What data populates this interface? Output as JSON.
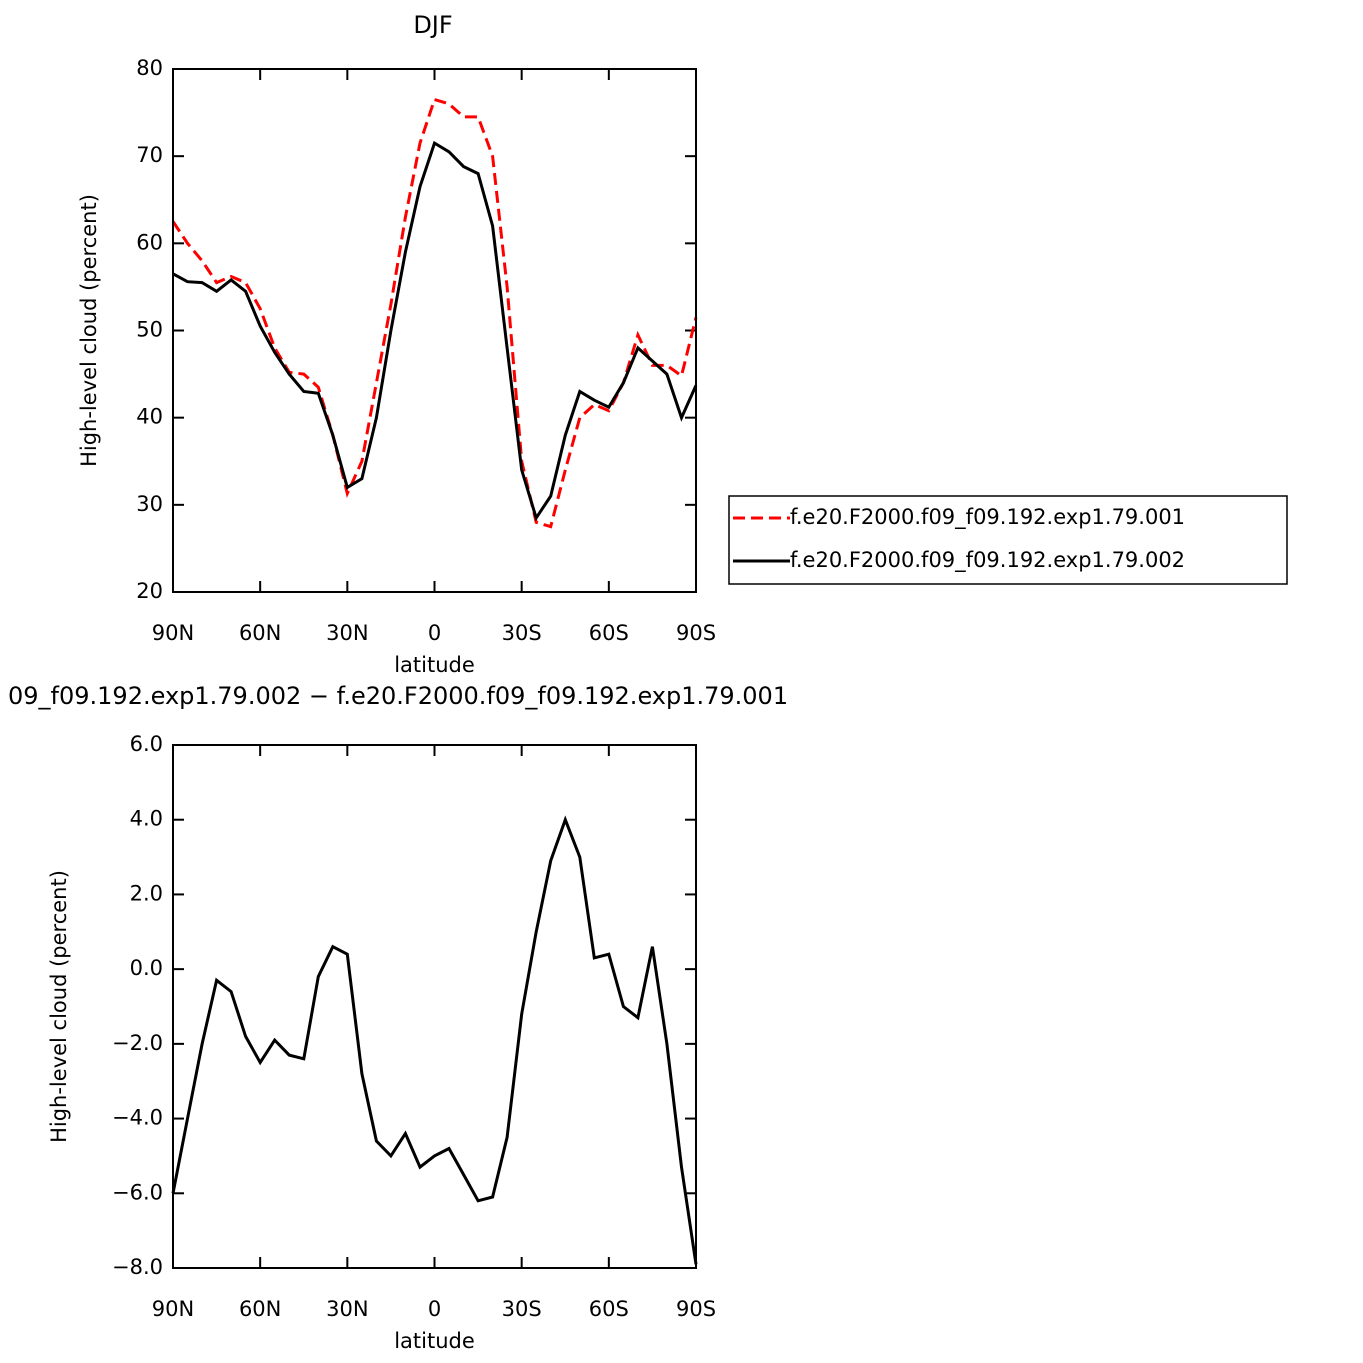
{
  "chart_data": [
    {
      "type": "line",
      "title": "DJF",
      "xlabel": "latitude",
      "ylabel": "High-level cloud (percent)",
      "x": [
        90,
        85,
        80,
        75,
        70,
        65,
        60,
        55,
        50,
        45,
        40,
        35,
        30,
        25,
        20,
        15,
        10,
        5,
        0,
        -5,
        -10,
        -15,
        -20,
        -25,
        -30,
        -35,
        -40,
        -45,
        -50,
        -55,
        -60,
        -65,
        -70,
        -75,
        -80,
        -85,
        -90
      ],
      "series": [
        {
          "name": "f.e20.F2000.f09_f09.192.exp1.79.001",
          "color": "#ff0000",
          "dash": "dashed",
          "values": [
            62.5,
            60,
            58,
            55.5,
            56.2,
            55.5,
            52.5,
            48,
            45.2,
            45,
            43.5,
            38,
            31.3,
            35,
            44,
            53,
            63,
            71.5,
            76.5,
            76,
            74.5,
            74.5,
            70,
            55,
            35,
            28,
            27.5,
            34,
            40,
            41.5,
            40.8,
            44,
            49.5,
            46,
            46,
            44.8,
            51.5
          ]
        },
        {
          "name": "f.e20.F2000.f09_f09.192.exp1.79.002",
          "color": "#000000",
          "dash": "solid",
          "values": [
            56.5,
            55.6,
            55.5,
            54.5,
            55.8,
            54.5,
            50.5,
            47.5,
            45,
            43,
            42.8,
            38,
            32,
            33,
            40,
            50,
            59,
            66.5,
            71.5,
            70.5,
            68.8,
            68,
            62,
            48,
            34,
            28.5,
            31,
            38,
            43,
            42,
            41.2,
            44,
            48,
            46.5,
            45,
            40,
            43.7
          ]
        }
      ],
      "xlim": [
        90,
        -90
      ],
      "xticks": [
        {
          "value": 90,
          "label": "90N"
        },
        {
          "value": 60,
          "label": "60N"
        },
        {
          "value": 30,
          "label": "30N"
        },
        0,
        {
          "value": -30,
          "label": "30S"
        },
        {
          "value": -60,
          "label": "60S"
        },
        {
          "value": -90,
          "label": "90S"
        }
      ],
      "ylim": [
        20,
        80
      ],
      "yticks": [
        20,
        30,
        40,
        50,
        60,
        70,
        80
      ],
      "legend": "right"
    },
    {
      "type": "line",
      "title": "09_f09.192.exp1.79.002 − f.e20.F2000.f09_f09.192.exp1.79.001",
      "xlabel": "latitude",
      "ylabel": "High-level cloud (percent)",
      "x": [
        90,
        85,
        80,
        75,
        70,
        65,
        60,
        55,
        50,
        45,
        40,
        35,
        30,
        25,
        20,
        15,
        10,
        5,
        0,
        -5,
        -10,
        -15,
        -20,
        -25,
        -30,
        -35,
        -40,
        -45,
        -50,
        -55,
        -60,
        -65,
        -70,
        -75,
        -80,
        -85,
        -90
      ],
      "series": [
        {
          "color": "#000000",
          "dash": "solid",
          "values": [
            -6.0,
            -4,
            -2,
            -0.3,
            -0.6,
            -1.8,
            -2.5,
            -1.9,
            -2.3,
            -2.4,
            -0.2,
            0.6,
            0.4,
            -2.8,
            -4.6,
            -5.0,
            -4.4,
            -5.3,
            -5.0,
            -4.8,
            -5.5,
            -6.2,
            -6.1,
            -4.5,
            -1.2,
            1.0,
            2.9,
            4.0,
            3.0,
            0.3,
            0.4,
            -1.0,
            -1.3,
            0.6,
            -2.0,
            -5.3,
            -7.9
          ]
        }
      ],
      "xlim": [
        90,
        -90
      ],
      "xticks": [
        {
          "value": 90,
          "label": "90N"
        },
        {
          "value": 60,
          "label": "60N"
        },
        {
          "value": 30,
          "label": "30N"
        },
        0,
        {
          "value": -30,
          "label": "30S"
        },
        {
          "value": -60,
          "label": "60S"
        },
        {
          "value": -90,
          "label": "90S"
        }
      ],
      "ylim": [
        -8,
        6
      ],
      "yticks": [
        {
          "value": -8,
          "label": "−8.0"
        },
        {
          "value": -6,
          "label": "−6.0"
        },
        {
          "value": -4,
          "label": "−4.0"
        },
        {
          "value": -2,
          "label": "−2.0"
        },
        {
          "value": 0,
          "label": "0.0"
        },
        {
          "value": 2,
          "label": "2.0"
        },
        {
          "value": 4,
          "label": "4.0"
        },
        {
          "value": 6,
          "label": "6.0"
        }
      ]
    }
  ]
}
